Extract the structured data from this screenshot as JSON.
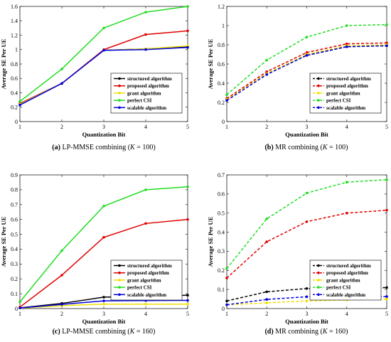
{
  "chart_data": [
    {
      "type": "line",
      "caption_letter": "(a)",
      "caption_text": "LP-MMSE combining (",
      "caption_k": "K",
      "caption_tail": " = 100)",
      "xlabel": "Quantization Bit",
      "ylabel": "Average SE Per UE",
      "x": [
        1,
        2,
        3,
        4,
        5
      ],
      "xlim": [
        1,
        5
      ],
      "ylim": [
        0,
        1.6
      ],
      "yticks": [
        "0",
        "0.2",
        "0.4",
        "0.6",
        "0.8",
        "1",
        "1.2",
        "1.4",
        "1.6"
      ],
      "xticks": [
        "1",
        "2",
        "3",
        "4",
        "5"
      ],
      "legend": "lower-right",
      "series": [
        {
          "name": "structured algorithm",
          "color": "#000000",
          "dash": "solid",
          "values": [
            0.25,
            0.53,
            0.99,
            1.01,
            1.04
          ]
        },
        {
          "name": "proposed algorithm",
          "color": "#e00000",
          "dash": "solid",
          "values": [
            0.25,
            0.53,
            1.0,
            1.21,
            1.26
          ]
        },
        {
          "name": "grant algorithm",
          "color": "#f0e000",
          "dash": "solid",
          "values": [
            0.24,
            0.53,
            0.99,
            1.01,
            1.05
          ]
        },
        {
          "name": "perfect CSI",
          "color": "#22dd22",
          "dash": "solid",
          "values": [
            0.28,
            0.73,
            1.3,
            1.52,
            1.6
          ]
        },
        {
          "name": "scalable algorithm",
          "color": "#0000dd",
          "dash": "solid",
          "values": [
            0.23,
            0.53,
            0.99,
            1.0,
            1.03
          ]
        }
      ]
    },
    {
      "type": "line",
      "caption_letter": "(b)",
      "caption_text": "MR combining (",
      "caption_k": "K",
      "caption_tail": " = 100)",
      "xlabel": "Quantization Bit",
      "ylabel": "Average SE Per UE",
      "x": [
        1,
        2,
        3,
        4,
        5
      ],
      "xlim": [
        1,
        5
      ],
      "ylim": [
        0,
        1.2
      ],
      "yticks": [
        "0",
        "0.2",
        "0.4",
        "0.6",
        "0.8",
        "1",
        "1.2"
      ],
      "xticks": [
        "1",
        "2",
        "3",
        "4",
        "5"
      ],
      "legend": "lower-right",
      "series": [
        {
          "name": "structured algorithm",
          "color": "#000000",
          "dash": "dashed",
          "values": [
            0.23,
            0.5,
            0.69,
            0.78,
            0.79
          ]
        },
        {
          "name": "proposed algorithm",
          "color": "#e00000",
          "dash": "dashed",
          "values": [
            0.24,
            0.52,
            0.72,
            0.81,
            0.82
          ]
        },
        {
          "name": "grant algorithm",
          "color": "#f0e000",
          "dash": "dashed",
          "values": [
            0.23,
            0.5,
            0.7,
            0.79,
            0.8
          ]
        },
        {
          "name": "perfect CSI",
          "color": "#22dd22",
          "dash": "dashed",
          "values": [
            0.28,
            0.64,
            0.88,
            1.0,
            1.01
          ]
        },
        {
          "name": "scalable algorithm",
          "color": "#0000dd",
          "dash": "dashed",
          "values": [
            0.22,
            0.49,
            0.69,
            0.78,
            0.79
          ]
        }
      ]
    },
    {
      "type": "line",
      "caption_letter": "(c)",
      "caption_text": "LP-MMSE combining (",
      "caption_k": "K",
      "caption_tail": " = 160)",
      "xlabel": "Quantization Bit",
      "ylabel": "Average SE Per UE",
      "x": [
        1,
        2,
        3,
        4,
        5
      ],
      "xlim": [
        1,
        5
      ],
      "ylim": [
        0,
        0.9
      ],
      "yticks": [
        "0",
        "0.1",
        "0.2",
        "0.3",
        "0.4",
        "0.5",
        "0.6",
        "0.7",
        "0.8",
        "0.9"
      ],
      "xticks": [
        "1",
        "2",
        "3",
        "4",
        "5"
      ],
      "legend": "lower-right",
      "series": [
        {
          "name": "structured algorithm",
          "color": "#000000",
          "dash": "solid",
          "values": [
            0.005,
            0.035,
            0.077,
            0.082,
            0.09
          ]
        },
        {
          "name": "proposed algorithm",
          "color": "#e00000",
          "dash": "solid",
          "values": [
            0.01,
            0.225,
            0.48,
            0.573,
            0.6
          ]
        },
        {
          "name": "grant algorithm",
          "color": "#f0e000",
          "dash": "solid",
          "values": [
            0.003,
            0.02,
            0.03,
            0.03,
            0.03
          ]
        },
        {
          "name": "perfect CSI",
          "color": "#22dd22",
          "dash": "solid",
          "values": [
            0.045,
            0.39,
            0.69,
            0.8,
            0.82
          ]
        },
        {
          "name": "scalable algorithm",
          "color": "#0000dd",
          "dash": "solid",
          "values": [
            0.004,
            0.028,
            0.052,
            0.054,
            0.055
          ]
        }
      ]
    },
    {
      "type": "line",
      "caption_letter": "(d)",
      "caption_text": "MR combining (",
      "caption_k": "K",
      "caption_tail": " = 160)",
      "xlabel": "Quantization Bit",
      "ylabel": "Average SE Per UE",
      "x": [
        1,
        2,
        3,
        4,
        5
      ],
      "xlim": [
        1,
        5
      ],
      "ylim": [
        0,
        0.7
      ],
      "yticks": [
        "0",
        "0.1",
        "0.2",
        "0.3",
        "0.4",
        "0.5",
        "0.6",
        "0.7"
      ],
      "xticks": [
        "1",
        "2",
        "3",
        "4",
        "5"
      ],
      "legend": "lower-right",
      "series": [
        {
          "name": "structured algorithm",
          "color": "#000000",
          "dash": "dashed",
          "values": [
            0.04,
            0.088,
            0.105,
            0.105,
            0.11
          ]
        },
        {
          "name": "proposed algorithm",
          "color": "#e00000",
          "dash": "dashed",
          "values": [
            0.16,
            0.35,
            0.455,
            0.5,
            0.515
          ]
        },
        {
          "name": "grant algorithm",
          "color": "#f0e000",
          "dash": "dashed",
          "values": [
            0.02,
            0.03,
            0.04,
            0.045,
            0.05
          ]
        },
        {
          "name": "perfect CSI",
          "color": "#22dd22",
          "dash": "dashed",
          "values": [
            0.21,
            0.47,
            0.605,
            0.662,
            0.675
          ]
        },
        {
          "name": "scalable algorithm",
          "color": "#0000dd",
          "dash": "dashed",
          "values": [
            0.02,
            0.048,
            0.062,
            0.062,
            0.063
          ]
        }
      ]
    }
  ]
}
